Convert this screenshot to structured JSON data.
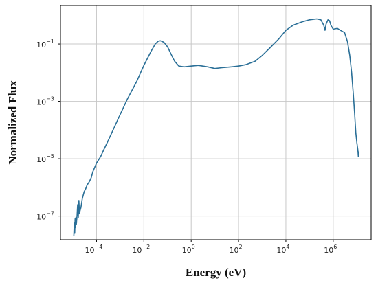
{
  "chart_data": {
    "type": "line",
    "title": "",
    "xlabel": "Energy (eV)",
    "ylabel": "Normalized Flux",
    "xscale": "log",
    "yscale": "log",
    "xlim": [
      3e-06,
      40000000
    ],
    "ylim": [
      1.5e-08,
      2.2
    ],
    "grid": true,
    "x_ticks": [
      {
        "base": "10",
        "exp": "−4",
        "value": 0.0001
      },
      {
        "base": "10",
        "exp": "−2",
        "value": 0.01
      },
      {
        "base": "10",
        "exp": "0",
        "value": 1
      },
      {
        "base": "10",
        "exp": "2",
        "value": 100
      },
      {
        "base": "10",
        "exp": "4",
        "value": 10000
      },
      {
        "base": "10",
        "exp": "6",
        "value": 1000000
      }
    ],
    "y_ticks": [
      {
        "base": "10",
        "exp": "−1",
        "value": 0.1
      },
      {
        "base": "10",
        "exp": "−3",
        "value": 0.001
      },
      {
        "base": "10",
        "exp": "−5",
        "value": 1e-05
      },
      {
        "base": "10",
        "exp": "−7",
        "value": 1e-07
      }
    ],
    "series": [
      {
        "color": "#2a6f97",
        "points": [
          [
            1.1e-05,
            2e-08
          ],
          [
            1.15e-05,
            6e-08
          ],
          [
            1.2e-05,
            2.5e-08
          ],
          [
            1.25e-05,
            8e-08
          ],
          [
            1.3e-05,
            4e-08
          ],
          [
            1.35e-05,
            9e-08
          ],
          [
            1.4e-05,
            5e-08
          ],
          [
            1.5e-05,
            1e-07
          ],
          [
            1.6e-05,
            2.5e-07
          ],
          [
            1.7e-05,
            9e-08
          ],
          [
            1.8e-05,
            3.5e-07
          ],
          [
            1.9e-05,
            1.2e-07
          ],
          [
            2e-05,
            1.5e-07
          ],
          [
            2.2e-05,
            2e-07
          ],
          [
            2.5e-05,
            4e-07
          ],
          [
            3e-05,
            7e-07
          ],
          [
            3.5e-05,
            9e-07
          ],
          [
            4e-05,
            1.2e-06
          ],
          [
            5e-05,
            1.6e-06
          ],
          [
            6e-05,
            2.2e-06
          ],
          [
            7e-05,
            3.5e-06
          ],
          [
            0.0001,
            7e-06
          ],
          [
            0.00015,
            1.2e-05
          ],
          [
            0.0002,
            2e-05
          ],
          [
            0.0003,
            4e-05
          ],
          [
            0.0005,
            0.0001
          ],
          [
            0.001,
            0.00035
          ],
          [
            0.002,
            0.0012
          ],
          [
            0.005,
            0.005
          ],
          [
            0.01,
            0.018
          ],
          [
            0.02,
            0.055
          ],
          [
            0.03,
            0.1
          ],
          [
            0.04,
            0.125
          ],
          [
            0.05,
            0.13
          ],
          [
            0.07,
            0.115
          ],
          [
            0.1,
            0.08
          ],
          [
            0.15,
            0.04
          ],
          [
            0.2,
            0.025
          ],
          [
            0.3,
            0.017
          ],
          [
            0.5,
            0.016
          ],
          [
            1,
            0.017
          ],
          [
            2,
            0.018
          ],
          [
            5,
            0.016
          ],
          [
            10,
            0.014
          ],
          [
            20,
            0.015
          ],
          [
            50,
            0.016
          ],
          [
            100,
            0.017
          ],
          [
            200,
            0.019
          ],
          [
            500,
            0.025
          ],
          [
            1000,
            0.04
          ],
          [
            2000,
            0.07
          ],
          [
            5000,
            0.15
          ],
          [
            10000,
            0.3
          ],
          [
            20000,
            0.45
          ],
          [
            50000,
            0.6
          ],
          [
            100000,
            0.7
          ],
          [
            200000,
            0.75
          ],
          [
            300000,
            0.7
          ],
          [
            400000,
            0.45
          ],
          [
            450000,
            0.3
          ],
          [
            500000,
            0.5
          ],
          [
            600000,
            0.7
          ],
          [
            700000,
            0.65
          ],
          [
            800000,
            0.45
          ],
          [
            1000000,
            0.33
          ],
          [
            1500000,
            0.35
          ],
          [
            2000000,
            0.3
          ],
          [
            3000000,
            0.25
          ],
          [
            4000000,
            0.12
          ],
          [
            5000000,
            0.04
          ],
          [
            6000000,
            0.01
          ],
          [
            7000000,
            0.002
          ],
          [
            8000000,
            0.0004
          ],
          [
            9000000,
            8e-05
          ],
          [
            10000000,
            3.5e-05
          ],
          [
            11000000,
            2e-05
          ],
          [
            11500000,
            1.2e-05
          ],
          [
            12000000,
            1.8e-05
          ]
        ]
      }
    ]
  }
}
